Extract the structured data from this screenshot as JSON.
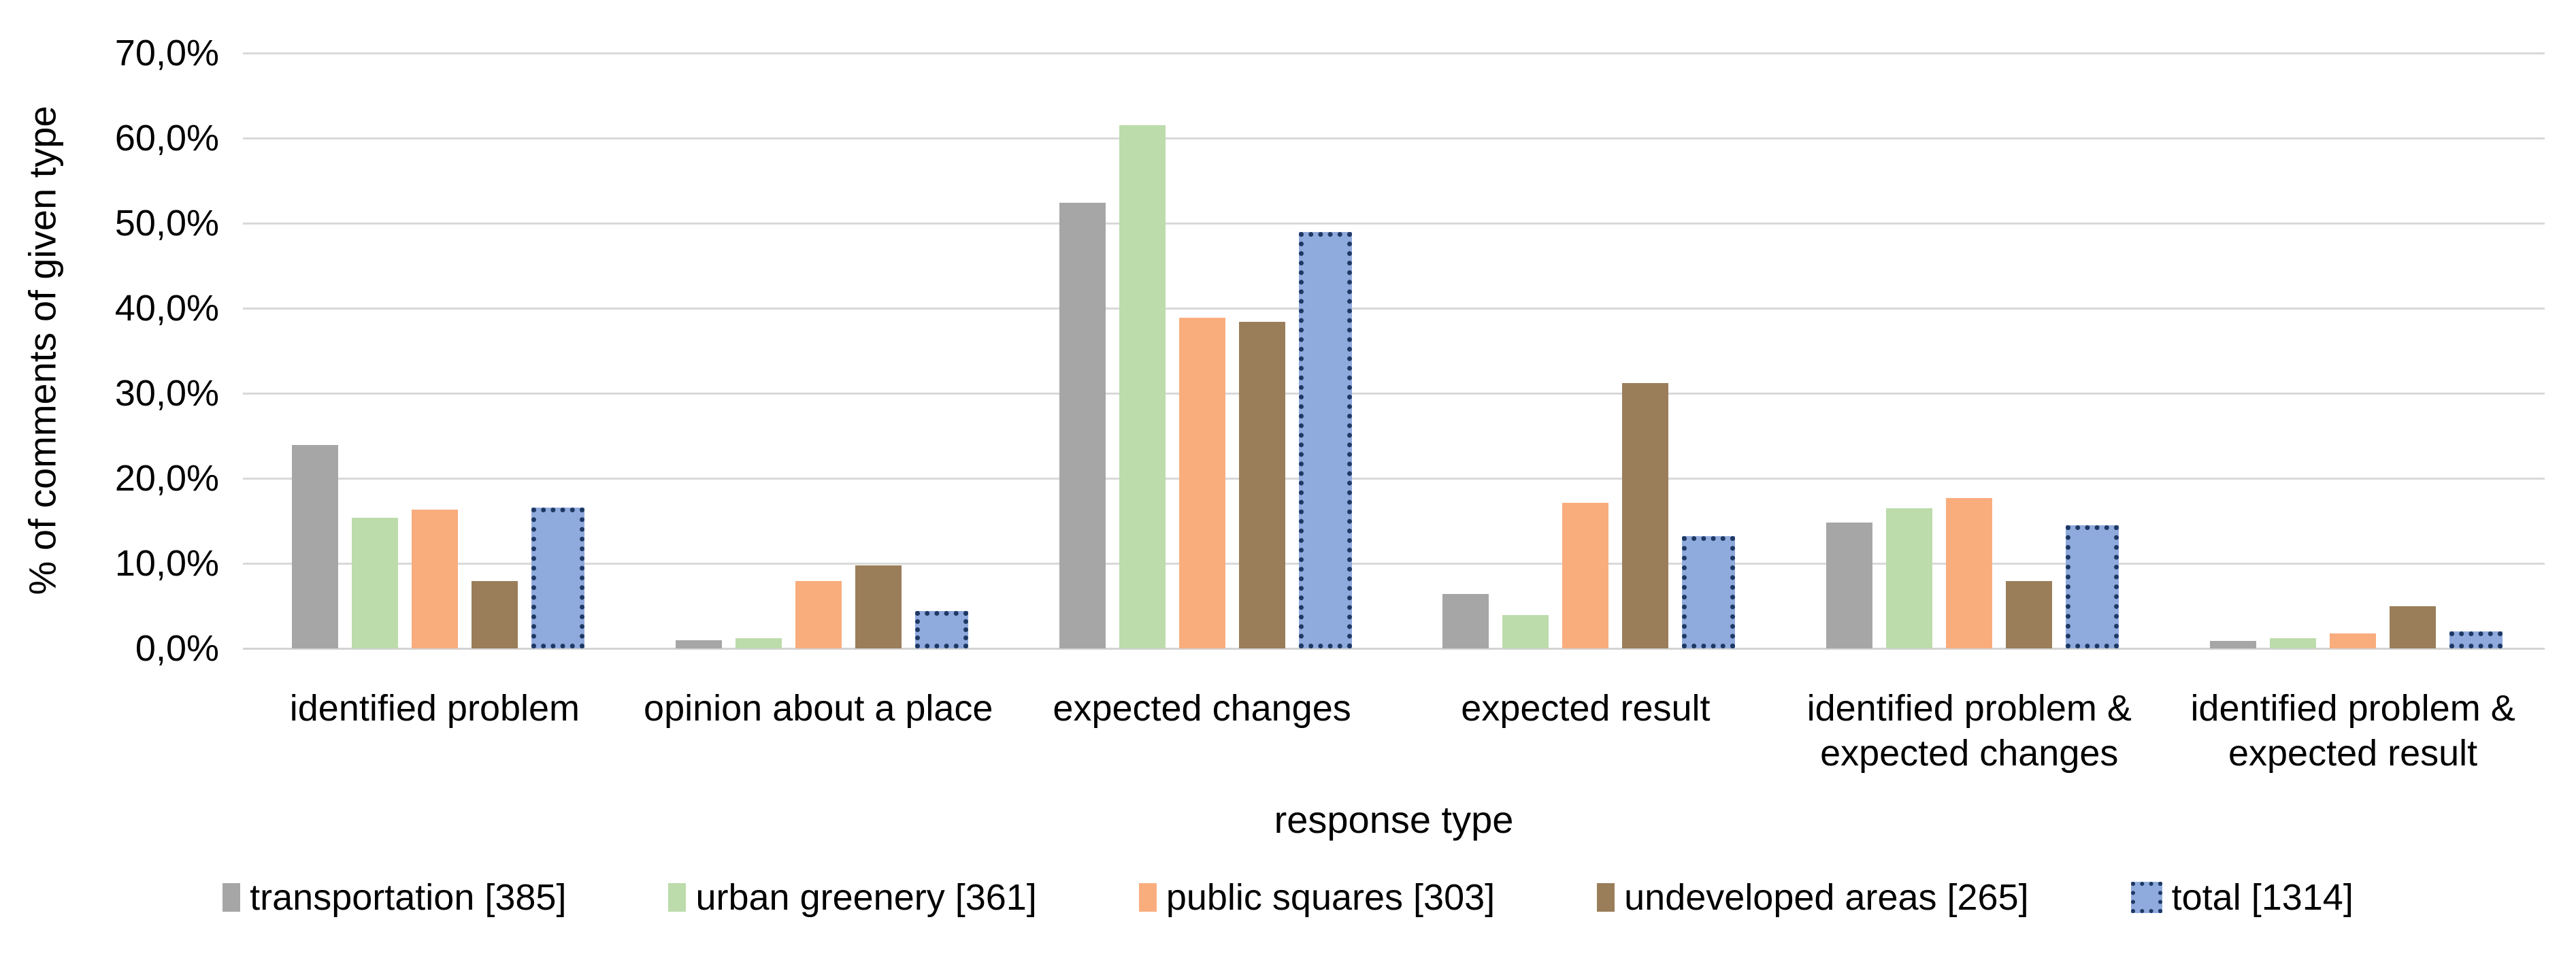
{
  "chart_data": {
    "type": "bar",
    "title": "",
    "ylabel": "% of comments of given type",
    "xlabel": "response type",
    "ylim": [
      0,
      70
    ],
    "grid": true,
    "legend_position": "bottom",
    "y_ticks": [
      {
        "label": "70,0%",
        "value": 70
      },
      {
        "label": "60,0%",
        "value": 60
      },
      {
        "label": "50,0%",
        "value": 50
      },
      {
        "label": "40,0%",
        "value": 40
      },
      {
        "label": "30,0%",
        "value": 30
      },
      {
        "label": "20,0%",
        "value": 20
      },
      {
        "label": "10,0%",
        "value": 10
      },
      {
        "label": "0,0%",
        "value": 0
      }
    ],
    "categories": [
      "identified problem",
      "opinion about a place",
      "expected changes",
      "expected result",
      "identified problem &\nexpected changes",
      "identified problem &\nexpected result"
    ],
    "series": [
      {
        "name": "transportation [385]",
        "color": "#a6a6a6",
        "style": "solid",
        "values": [
          23.9,
          1.0,
          52.4,
          6.4,
          14.8,
          0.9
        ]
      },
      {
        "name": "urban greenery [361]",
        "color": "#bcdcab",
        "style": "solid",
        "values": [
          15.4,
          1.2,
          61.5,
          3.9,
          16.5,
          1.2
        ]
      },
      {
        "name": "public squares [303]",
        "color": "#f9ad7d",
        "style": "solid",
        "values": [
          16.3,
          7.9,
          38.9,
          17.1,
          17.7,
          1.8
        ]
      },
      {
        "name": "undeveloped areas [265]",
        "color": "#9a7e5a",
        "style": "solid",
        "values": [
          7.9,
          9.8,
          38.4,
          31.2,
          7.9,
          5.0
        ]
      },
      {
        "name": "total [1314]",
        "color": "#8faadc",
        "style": "dotted-outline",
        "outline_color": "#1f3864",
        "values": [
          16.6,
          4.4,
          49.0,
          13.2,
          14.5,
          2.0
        ]
      }
    ]
  }
}
